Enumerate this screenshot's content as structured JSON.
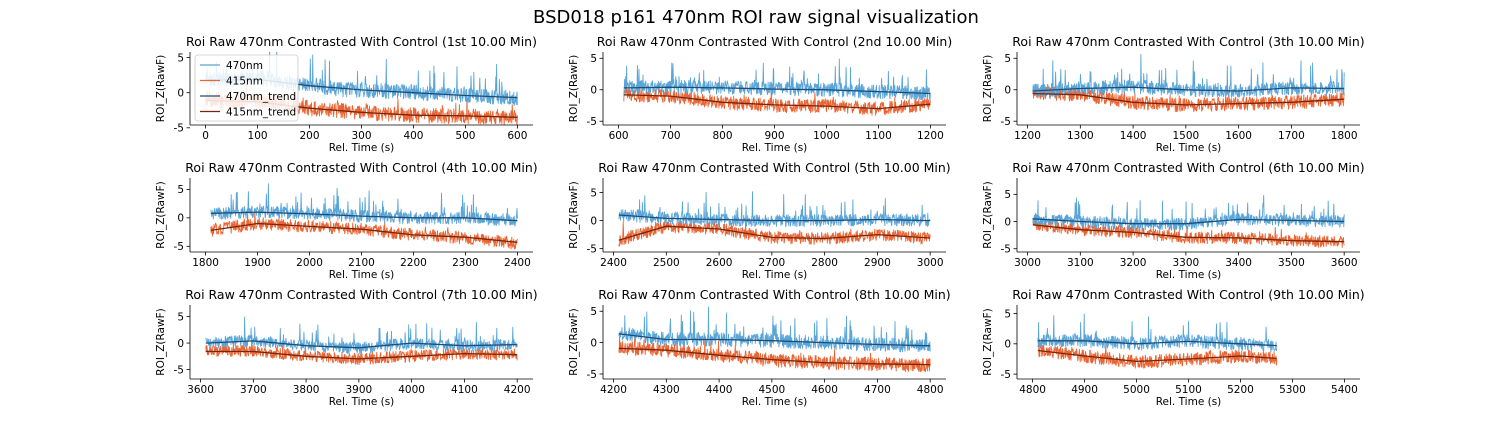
{
  "figure": {
    "suptitle": "BSD018 p161 470nm ROI  raw signal visualization"
  },
  "colors": {
    "s470": "#5aa5d8",
    "s415": "#eb6433",
    "s470_trend": "#1f4d78",
    "s415_trend": "#7a2508"
  },
  "chart_data": [
    {
      "type": "line",
      "title": "Roi Raw 470nm Contrasted With Control (1st 10.00 Min)",
      "xlabel": "Rel. Time (s)",
      "ylabel": "ROI_Z(RawF)",
      "xlim": [
        -30,
        630
      ],
      "ylim": [
        -4.6,
        5.8
      ],
      "xticks": [
        0,
        100,
        200,
        300,
        400,
        500,
        600
      ],
      "yticks": [
        5,
        0,
        -5
      ],
      "legend": "top-left",
      "series": [
        {
          "name": "470nm",
          "x": [
            0,
            50,
            100,
            150,
            200,
            250,
            300,
            350,
            400,
            450,
            500,
            550,
            600
          ],
          "y": [
            2.0,
            1.8,
            2.2,
            1.5,
            1.2,
            0.5,
            0.4,
            0.2,
            0.0,
            -0.2,
            -0.4,
            -0.5,
            -0.8
          ]
        },
        {
          "name": "415nm",
          "x": [
            0,
            50,
            100,
            150,
            200,
            250,
            300,
            350,
            400,
            450,
            500,
            550,
            600
          ],
          "y": [
            -1.0,
            -1.3,
            -1.2,
            -1.6,
            -2.2,
            -2.5,
            -2.8,
            -3.0,
            -3.2,
            -3.3,
            -3.3,
            -3.4,
            -3.6
          ]
        },
        {
          "name": "470nm_trend",
          "x": [
            0,
            100,
            200,
            300,
            400,
            500,
            600
          ],
          "y": [
            1.8,
            1.9,
            1.0,
            0.4,
            0.0,
            -0.4,
            -0.7
          ]
        },
        {
          "name": "415nm_trend",
          "x": [
            0,
            100,
            200,
            300,
            400,
            500,
            600
          ],
          "y": [
            -1.1,
            -1.3,
            -2.2,
            -2.8,
            -3.2,
            -3.3,
            -3.5
          ]
        }
      ]
    },
    {
      "type": "line",
      "title": "Roi Raw 470nm Contrasted With Control (2nd 10.00 Min)",
      "xlabel": "Rel. Time (s)",
      "ylabel": "ROI_Z(RawF)",
      "xlim": [
        570,
        1230
      ],
      "ylim": [
        -5.6,
        6.0
      ],
      "xticks": [
        600,
        700,
        800,
        900,
        1000,
        1100,
        1200
      ],
      "yticks": [
        5,
        0,
        -5
      ],
      "series": [
        {
          "name": "470nm",
          "x": [
            610,
            700,
            800,
            900,
            1000,
            1100,
            1200
          ],
          "y": [
            0.3,
            0.5,
            0.3,
            0.2,
            0.0,
            -0.3,
            -0.6
          ]
        },
        {
          "name": "415nm",
          "x": [
            610,
            700,
            800,
            900,
            1000,
            1100,
            1200
          ],
          "y": [
            -0.8,
            -1.0,
            -2.0,
            -2.5,
            -2.6,
            -3.0,
            -2.2
          ]
        },
        {
          "name": "470nm_trend",
          "x": [
            610,
            700,
            800,
            900,
            1000,
            1100,
            1200
          ],
          "y": [
            0.3,
            0.4,
            0.3,
            0.1,
            0.0,
            -0.3,
            -0.6
          ]
        },
        {
          "name": "415nm_trend",
          "x": [
            610,
            700,
            800,
            900,
            1000,
            1100,
            1200
          ],
          "y": [
            -0.8,
            -1.0,
            -2.0,
            -2.4,
            -2.6,
            -3.0,
            -2.3
          ]
        }
      ]
    },
    {
      "type": "line",
      "title": "Roi Raw 470nm Contrasted With Control (3th 10.00 Min)",
      "xlabel": "Rel. Time (s)",
      "ylabel": "ROI_Z(RawF)",
      "xlim": [
        1180,
        1830
      ],
      "ylim": [
        -5.6,
        6.0
      ],
      "xticks": [
        1200,
        1300,
        1400,
        1500,
        1600,
        1700,
        1800
      ],
      "yticks": [
        5,
        0,
        -5
      ],
      "series": [
        {
          "name": "470nm",
          "x": [
            1210,
            1300,
            1400,
            1500,
            1600,
            1700,
            1800
          ],
          "y": [
            -0.2,
            0.2,
            0.5,
            0.0,
            -0.2,
            0.3,
            0.2
          ]
        },
        {
          "name": "415nm",
          "x": [
            1210,
            1300,
            1400,
            1500,
            1600,
            1700,
            1800
          ],
          "y": [
            -0.5,
            -0.8,
            -2.0,
            -2.5,
            -2.2,
            -2.0,
            -1.5
          ]
        },
        {
          "name": "470nm_trend",
          "x": [
            1210,
            1300,
            1400,
            1500,
            1600,
            1700,
            1800
          ],
          "y": [
            -0.2,
            0.2,
            0.4,
            0.0,
            -0.2,
            0.3,
            0.2
          ]
        },
        {
          "name": "415nm_trend",
          "x": [
            1210,
            1300,
            1400,
            1500,
            1600,
            1700,
            1800
          ],
          "y": [
            -0.6,
            -0.8,
            -2.0,
            -2.4,
            -2.2,
            -2.0,
            -1.5
          ]
        }
      ]
    },
    {
      "type": "line",
      "title": "Roi Raw 470nm Contrasted With Control (4th 10.00 Min)",
      "xlabel": "Rel. Time (s)",
      "ylabel": "ROI_Z(RawF)",
      "xlim": [
        1770,
        2430
      ],
      "ylim": [
        -6.0,
        7.0
      ],
      "xticks": [
        1800,
        1900,
        2000,
        2100,
        2200,
        2300,
        2400
      ],
      "yticks": [
        5,
        0,
        -5
      ],
      "series": [
        {
          "name": "470nm",
          "x": [
            1810,
            1900,
            2000,
            2100,
            2200,
            2300,
            2400
          ],
          "y": [
            0.8,
            1.0,
            0.8,
            0.3,
            0.0,
            0.0,
            -0.5
          ]
        },
        {
          "name": "415nm",
          "x": [
            1810,
            1900,
            2000,
            2100,
            2200,
            2300,
            2400
          ],
          "y": [
            -2.2,
            -1.0,
            -1.5,
            -2.0,
            -3.0,
            -3.5,
            -4.5
          ]
        },
        {
          "name": "470nm_trend",
          "x": [
            1810,
            1900,
            2000,
            2100,
            2200,
            2300,
            2400
          ],
          "y": [
            0.8,
            1.0,
            0.7,
            0.3,
            0.0,
            0.0,
            -0.5
          ]
        },
        {
          "name": "415nm_trend",
          "x": [
            1810,
            1900,
            2000,
            2100,
            2200,
            2300,
            2400
          ],
          "y": [
            -2.2,
            -1.0,
            -1.5,
            -2.0,
            -3.0,
            -3.4,
            -4.3
          ]
        }
      ]
    },
    {
      "type": "line",
      "title": "Roi Raw 470nm Contrasted With Control (5th 10.00 Min)",
      "xlabel": "Rel. Time (s)",
      "ylabel": "ROI_Z(RawF)",
      "xlim": [
        2380,
        3030
      ],
      "ylim": [
        -5.6,
        7.6
      ],
      "xticks": [
        2400,
        2500,
        2600,
        2700,
        2800,
        2900,
        3000
      ],
      "yticks": [
        5,
        0,
        -5
      ],
      "series": [
        {
          "name": "470nm",
          "x": [
            2410,
            2500,
            2600,
            2700,
            2800,
            2900,
            3000
          ],
          "y": [
            1.0,
            0.5,
            0.2,
            0.0,
            0.0,
            0.2,
            0.0
          ]
        },
        {
          "name": "415nm",
          "x": [
            2410,
            2500,
            2600,
            2700,
            2800,
            2900,
            3000
          ],
          "y": [
            -3.5,
            -1.0,
            -1.5,
            -3.0,
            -3.2,
            -2.5,
            -3.2
          ]
        },
        {
          "name": "470nm_trend",
          "x": [
            2410,
            2500,
            2600,
            2700,
            2800,
            2900,
            3000
          ],
          "y": [
            1.0,
            0.4,
            0.2,
            0.0,
            0.0,
            0.2,
            0.0
          ]
        },
        {
          "name": "415nm_trend",
          "x": [
            2410,
            2500,
            2600,
            2700,
            2800,
            2900,
            3000
          ],
          "y": [
            -3.5,
            -1.0,
            -1.5,
            -3.0,
            -3.2,
            -2.5,
            -3.1
          ]
        }
      ]
    },
    {
      "type": "line",
      "title": "Roi Raw 470nm Contrasted With Control (6th 10.00 Min)",
      "xlabel": "Rel. Time (s)",
      "ylabel": "ROI_Z(RawF)",
      "xlim": [
        2980,
        3630
      ],
      "ylim": [
        -5.6,
        8.0
      ],
      "xticks": [
        3000,
        3100,
        3200,
        3300,
        3400,
        3500,
        3600
      ],
      "yticks": [
        5,
        0,
        -5
      ],
      "series": [
        {
          "name": "470nm",
          "x": [
            3010,
            3100,
            3200,
            3300,
            3400,
            3500,
            3600
          ],
          "y": [
            0.5,
            0.0,
            -0.5,
            -0.5,
            0.5,
            0.2,
            0.0
          ]
        },
        {
          "name": "415nm",
          "x": [
            3010,
            3100,
            3200,
            3300,
            3400,
            3500,
            3600
          ],
          "y": [
            -0.5,
            -1.5,
            -2.0,
            -3.0,
            -3.0,
            -3.5,
            -3.8
          ]
        },
        {
          "name": "470nm_trend",
          "x": [
            3010,
            3100,
            3200,
            3300,
            3400,
            3500,
            3600
          ],
          "y": [
            0.5,
            0.0,
            -0.4,
            -0.4,
            0.4,
            0.2,
            0.0
          ]
        },
        {
          "name": "415nm_trend",
          "x": [
            3010,
            3100,
            3200,
            3300,
            3400,
            3500,
            3600
          ],
          "y": [
            -0.6,
            -1.5,
            -2.0,
            -2.9,
            -3.0,
            -3.5,
            -3.7
          ]
        }
      ]
    },
    {
      "type": "line",
      "title": "Roi Raw 470nm Contrasted With Control (7th 10.00 Min)",
      "xlabel": "Rel. Time (s)",
      "ylabel": "ROI_Z(RawF)",
      "xlim": [
        3580,
        4230
      ],
      "ylim": [
        -6.8,
        7.2
      ],
      "xticks": [
        3600,
        3700,
        3800,
        3900,
        4000,
        4100,
        4200
      ],
      "yticks": [
        5,
        0,
        -5
      ],
      "series": [
        {
          "name": "470nm",
          "x": [
            3610,
            3700,
            3800,
            3900,
            4000,
            4100,
            4200
          ],
          "y": [
            0.0,
            0.5,
            -0.5,
            -1.0,
            0.0,
            -0.5,
            -0.3
          ]
        },
        {
          "name": "415nm",
          "x": [
            3610,
            3700,
            3800,
            3900,
            4000,
            4100,
            4200
          ],
          "y": [
            -1.5,
            -1.5,
            -2.5,
            -3.0,
            -2.5,
            -2.0,
            -2.2
          ]
        },
        {
          "name": "470nm_trend",
          "x": [
            3610,
            3700,
            3800,
            3900,
            4000,
            4100,
            4200
          ],
          "y": [
            0.0,
            0.4,
            -0.5,
            -0.9,
            0.0,
            -0.5,
            -0.3
          ]
        },
        {
          "name": "415nm_trend",
          "x": [
            3610,
            3700,
            3800,
            3900,
            4000,
            4100,
            4200
          ],
          "y": [
            -1.6,
            -1.6,
            -2.5,
            -3.0,
            -2.5,
            -2.0,
            -2.2
          ]
        }
      ]
    },
    {
      "type": "line",
      "title": "Roi Raw 470nm Contrasted With Control (8th 10.00 Min)",
      "xlabel": "Rel. Time (s)",
      "ylabel": "ROI_Z(RawF)",
      "xlim": [
        4180,
        4830
      ],
      "ylim": [
        -5.8,
        6.0
      ],
      "xticks": [
        4200,
        4300,
        4400,
        4500,
        4600,
        4700,
        4800
      ],
      "yticks": [
        5,
        0,
        -5
      ],
      "series": [
        {
          "name": "470nm",
          "x": [
            4210,
            4300,
            4400,
            4500,
            4600,
            4700,
            4800
          ],
          "y": [
            1.5,
            0.5,
            0.5,
            0.3,
            0.0,
            -0.3,
            -0.5
          ]
        },
        {
          "name": "415nm",
          "x": [
            4210,
            4300,
            4400,
            4500,
            4600,
            4700,
            4800
          ],
          "y": [
            -0.8,
            -1.2,
            -2.0,
            -2.8,
            -3.2,
            -3.4,
            -3.6
          ]
        },
        {
          "name": "470nm_trend",
          "x": [
            4210,
            4300,
            4400,
            4500,
            4600,
            4700,
            4800
          ],
          "y": [
            1.4,
            0.5,
            0.5,
            0.3,
            0.0,
            -0.3,
            -0.5
          ]
        },
        {
          "name": "415nm_trend",
          "x": [
            4210,
            4300,
            4400,
            4500,
            4600,
            4700,
            4800
          ],
          "y": [
            -0.9,
            -1.2,
            -2.0,
            -2.7,
            -3.2,
            -3.4,
            -3.5
          ]
        }
      ]
    },
    {
      "type": "line",
      "title": "Roi Raw 470nm Contrasted With Control (9th 10.00 Min)",
      "xlabel": "Rel. Time (s)",
      "ylabel": "ROI_Z(RawF)",
      "xlim": [
        4770,
        5430
      ],
      "ylim": [
        -5.8,
        6.4
      ],
      "xticks": [
        4800,
        4900,
        5000,
        5100,
        5200,
        5300,
        5400
      ],
      "yticks": [
        5,
        0,
        -5
      ],
      "series": [
        {
          "name": "470nm",
          "x": [
            4810,
            4900,
            5000,
            5100,
            5200,
            5270
          ],
          "y": [
            0.5,
            0.5,
            0.0,
            0.5,
            0.0,
            -0.3
          ]
        },
        {
          "name": "415nm",
          "x": [
            4810,
            4900,
            5000,
            5100,
            5200,
            5270
          ],
          "y": [
            -1.0,
            -2.0,
            -3.0,
            -2.5,
            -2.0,
            -2.5
          ]
        },
        {
          "name": "470nm_trend",
          "x": [
            4810,
            4900,
            5000,
            5100,
            5200,
            5270
          ],
          "y": [
            0.5,
            0.5,
            0.0,
            0.4,
            0.0,
            -0.3
          ]
        },
        {
          "name": "415nm_trend",
          "x": [
            4810,
            4900,
            5000,
            5100,
            5200,
            5270
          ],
          "y": [
            -1.1,
            -2.0,
            -2.9,
            -2.5,
            -2.0,
            -2.4
          ]
        }
      ]
    }
  ]
}
